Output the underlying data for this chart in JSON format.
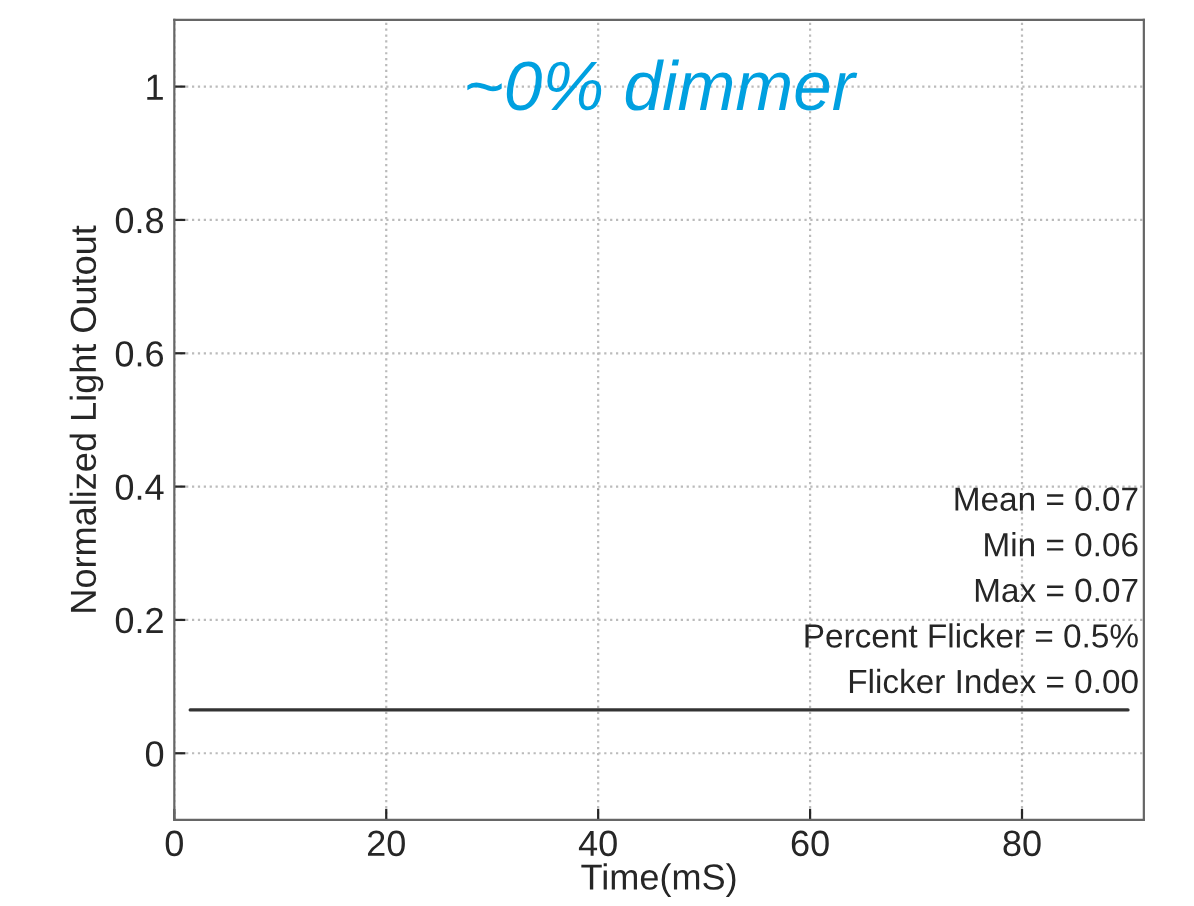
{
  "chart_data": {
    "type": "line",
    "title": "~0% dimmer",
    "xlabel": "Time(mS)",
    "ylabel": "Normalized Light Outout",
    "x": [
      1.5,
      90
    ],
    "series": [
      {
        "color": "#333333",
        "values": [
          0.065,
          0.065
        ]
      }
    ],
    "annotations": [
      "Mean = 0.07",
      "Min = 0.06",
      "Max = 0.07",
      "Percent Flicker = 0.5%",
      "Flicker Index = 0.00"
    ],
    "xlim": [
      0,
      91.5
    ],
    "xticks": [
      0,
      20,
      40,
      60,
      80
    ],
    "ylim": [
      -0.1,
      1.1
    ],
    "yticks": [
      0,
      0.2,
      0.4,
      0.6,
      0.8,
      1
    ],
    "grid": true,
    "line_style": "solid",
    "marker": "none"
  }
}
